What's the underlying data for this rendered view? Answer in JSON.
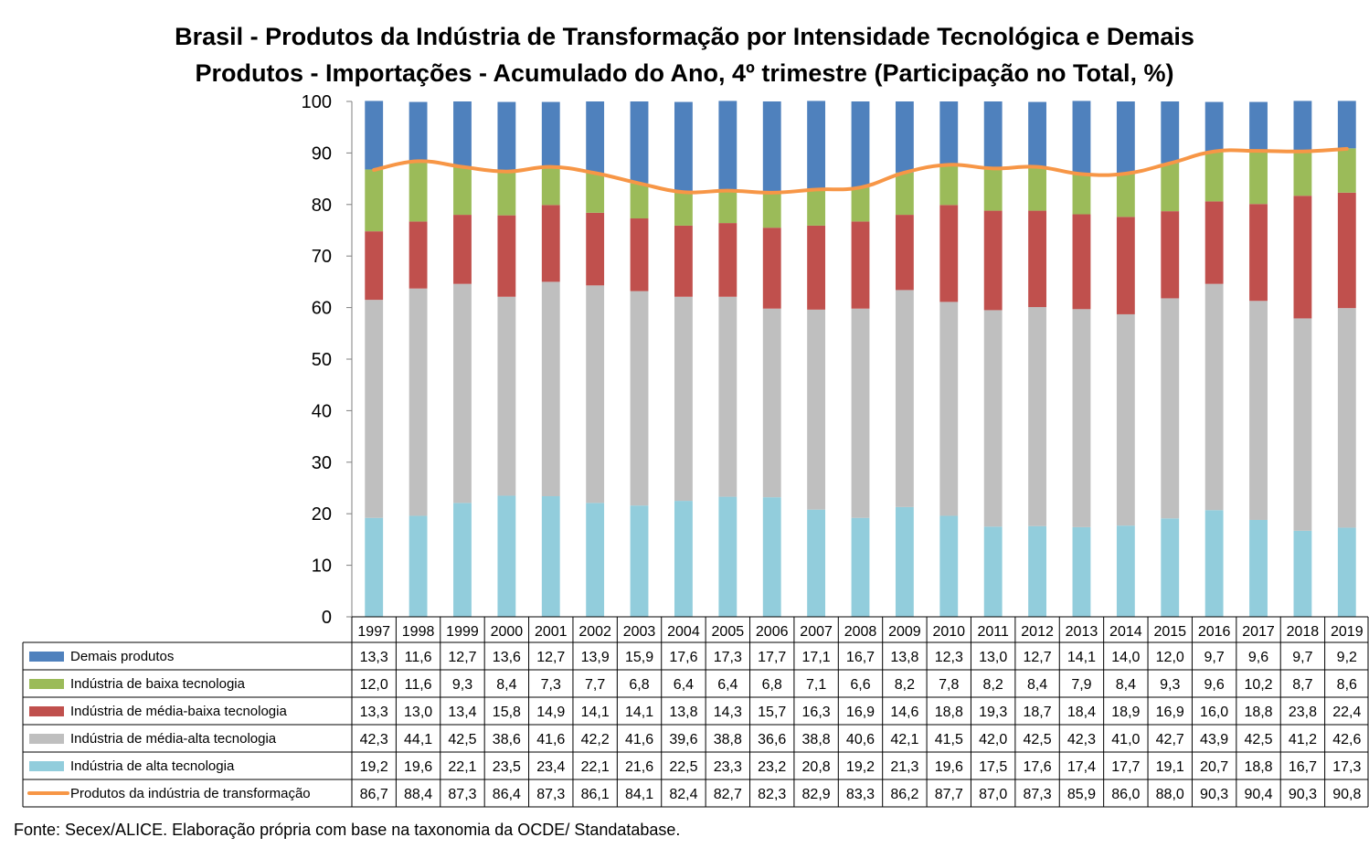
{
  "title_lines": [
    "Brasil - Produtos da Indústria de Transformação por Intensidade Tecnológica e Demais",
    "Produtos - Importações - Acumulado do Ano, 4º trimestre (Participação no Total, %)"
  ],
  "source": "Fonte: Secex/ALICE. Elaboração própria com base na taxonomia da OCDE/ Standatabase.",
  "chart_data": {
    "type": "bar",
    "stacked": true,
    "ylim": [
      0,
      100
    ],
    "yticks": [
      0,
      10,
      20,
      30,
      40,
      50,
      60,
      70,
      80,
      90,
      100
    ],
    "grid": false,
    "legend": "data-table",
    "categories": [
      "1997",
      "1998",
      "1999",
      "2000",
      "2001",
      "2002",
      "2003",
      "2004",
      "2005",
      "2006",
      "2007",
      "2008",
      "2009",
      "2010",
      "2011",
      "2012",
      "2013",
      "2014",
      "2015",
      "2016",
      "2017",
      "2018",
      "2019"
    ],
    "series": [
      {
        "name": "Demais produtos",
        "type": "bar",
        "color": "#4F81BD",
        "values": [
          13.3,
          11.6,
          12.7,
          13.6,
          12.7,
          13.9,
          15.9,
          17.6,
          17.3,
          17.7,
          17.1,
          16.7,
          13.8,
          12.3,
          13.0,
          12.7,
          14.1,
          14.0,
          12.0,
          9.7,
          9.6,
          9.7,
          9.2
        ],
        "labels": [
          "13,3",
          "11,6",
          "12,7",
          "13,6",
          "12,7",
          "13,9",
          "15,9",
          "17,6",
          "17,3",
          "17,7",
          "17,1",
          "16,7",
          "13,8",
          "12,3",
          "13,0",
          "12,7",
          "14,1",
          "14,0",
          "12,0",
          "9,7",
          "9,6",
          "9,7",
          "9,2"
        ]
      },
      {
        "name": "Indústria de baixa tecnologia",
        "type": "bar",
        "color": "#9BBB59",
        "values": [
          12.0,
          11.6,
          9.3,
          8.4,
          7.3,
          7.7,
          6.8,
          6.4,
          6.4,
          6.8,
          7.1,
          6.6,
          8.2,
          7.8,
          8.2,
          8.4,
          7.9,
          8.4,
          9.3,
          9.6,
          10.2,
          8.7,
          8.6
        ],
        "labels": [
          "12,0",
          "11,6",
          "9,3",
          "8,4",
          "7,3",
          "7,7",
          "6,8",
          "6,4",
          "6,4",
          "6,8",
          "7,1",
          "6,6",
          "8,2",
          "7,8",
          "8,2",
          "8,4",
          "7,9",
          "8,4",
          "9,3",
          "9,6",
          "10,2",
          "8,7",
          "8,6"
        ]
      },
      {
        "name": "Indústria de média-baixa tecnologia",
        "type": "bar",
        "color": "#C0504D",
        "values": [
          13.3,
          13.0,
          13.4,
          15.8,
          14.9,
          14.1,
          14.1,
          13.8,
          14.3,
          15.7,
          16.3,
          16.9,
          14.6,
          18.8,
          19.3,
          18.7,
          18.4,
          18.9,
          16.9,
          16.0,
          18.8,
          23.8,
          22.4
        ],
        "labels": [
          "13,3",
          "13,0",
          "13,4",
          "15,8",
          "14,9",
          "14,1",
          "14,1",
          "13,8",
          "14,3",
          "15,7",
          "16,3",
          "16,9",
          "14,6",
          "18,8",
          "19,3",
          "18,7",
          "18,4",
          "18,9",
          "16,9",
          "16,0",
          "18,8",
          "23,8",
          "22,4"
        ]
      },
      {
        "name": "Indústria de média-alta tecnologia",
        "type": "bar",
        "color": "#BFBFBF",
        "values": [
          42.3,
          44.1,
          42.5,
          38.6,
          41.6,
          42.2,
          41.6,
          39.6,
          38.8,
          36.6,
          38.8,
          40.6,
          42.1,
          41.5,
          42.0,
          42.5,
          42.3,
          41.0,
          42.7,
          43.9,
          42.5,
          41.2,
          42.6
        ],
        "labels": [
          "42,3",
          "44,1",
          "42,5",
          "38,6",
          "41,6",
          "42,2",
          "41,6",
          "39,6",
          "38,8",
          "36,6",
          "38,8",
          "40,6",
          "42,1",
          "41,5",
          "42,0",
          "42,5",
          "42,3",
          "41,0",
          "42,7",
          "43,9",
          "42,5",
          "41,2",
          "42,6"
        ]
      },
      {
        "name": "Indústria de alta tecnologia",
        "type": "bar",
        "color": "#92CDDC",
        "values": [
          19.2,
          19.6,
          22.1,
          23.5,
          23.4,
          22.1,
          21.6,
          22.5,
          23.3,
          23.2,
          20.8,
          19.2,
          21.3,
          19.6,
          17.5,
          17.6,
          17.4,
          17.7,
          19.1,
          20.7,
          18.8,
          16.7,
          17.3
        ],
        "labels": [
          "19,2",
          "19,6",
          "22,1",
          "23,5",
          "23,4",
          "22,1",
          "21,6",
          "22,5",
          "23,3",
          "23,2",
          "20,8",
          "19,2",
          "21,3",
          "19,6",
          "17,5",
          "17,6",
          "17,4",
          "17,7",
          "19,1",
          "20,7",
          "18,8",
          "16,7",
          "17,3"
        ]
      },
      {
        "name": "Produtos da indústria de transformação",
        "type": "line",
        "color": "#F79646",
        "values": [
          86.7,
          88.4,
          87.3,
          86.4,
          87.3,
          86.1,
          84.1,
          82.4,
          82.7,
          82.3,
          82.9,
          83.3,
          86.2,
          87.7,
          87.0,
          87.3,
          85.9,
          86.0,
          88.0,
          90.3,
          90.4,
          90.3,
          90.8
        ],
        "labels": [
          "86,7",
          "88,4",
          "87,3",
          "86,4",
          "87,3",
          "86,1",
          "84,1",
          "82,4",
          "82,7",
          "82,3",
          "82,9",
          "83,3",
          "86,2",
          "87,7",
          "87,0",
          "87,3",
          "85,9",
          "86,0",
          "88,0",
          "90,3",
          "90,4",
          "90,3",
          "90,8"
        ]
      }
    ]
  }
}
